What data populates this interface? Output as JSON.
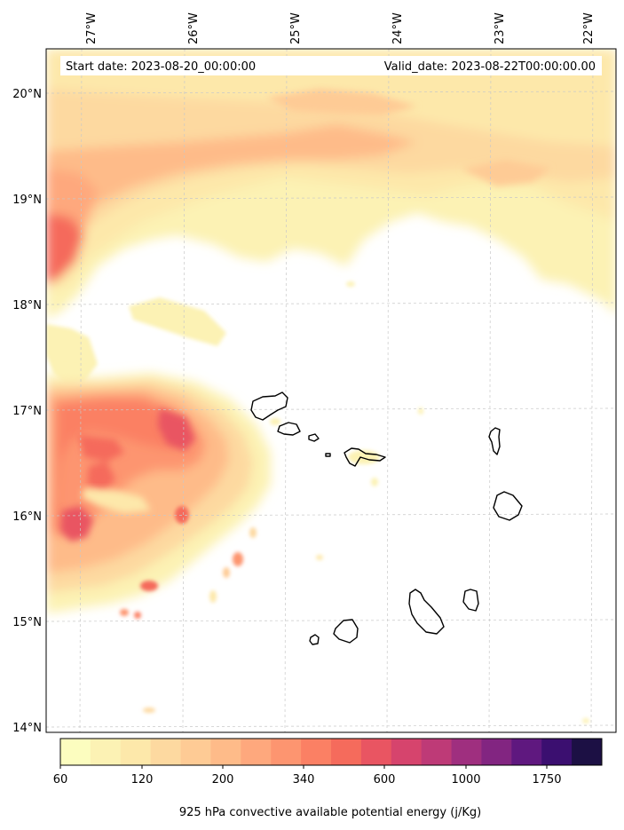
{
  "map": {
    "start_date": "Start date: 2023-08-20_00:00:00",
    "valid_date": "Valid_date: 2023-08-22T00:00:00.00",
    "longitude_ticks": [
      "27°W",
      "26°W",
      "25°W",
      "24°W",
      "23°W",
      "22°W"
    ],
    "latitude_ticks": [
      "20°N",
      "19°N",
      "18°N",
      "17°N",
      "16°N",
      "15°N",
      "14°N"
    ],
    "extent": {
      "lon_min": -27.35,
      "lon_max": -21.75,
      "lat_min": 13.95,
      "lat_max": 20.42
    },
    "islands": [
      "Santo Antão",
      "São Vicente",
      "Santa Luzia",
      "Branco",
      "São Nicolau",
      "Sal",
      "Boa Vista",
      "Brava",
      "Fogo",
      "Santiago",
      "Maio"
    ]
  },
  "colorbar": {
    "label": "925 hPa convective available potential energy (j/Kg)",
    "tick_labels": [
      "60",
      "120",
      "200",
      "340",
      "600",
      "1000",
      "1750"
    ],
    "colors": [
      "#fcfdbf",
      "#fcf2b4",
      "#fde8aa",
      "#fdd9a0",
      "#fecb95",
      "#febb89",
      "#fea87d",
      "#fd9570",
      "#fb8064",
      "#f56b5c",
      "#e95562",
      "#d6446d",
      "#be3a77",
      "#9f2f7f",
      "#822581",
      "#5f187f",
      "#3b0f70",
      "#1c1044"
    ]
  }
}
